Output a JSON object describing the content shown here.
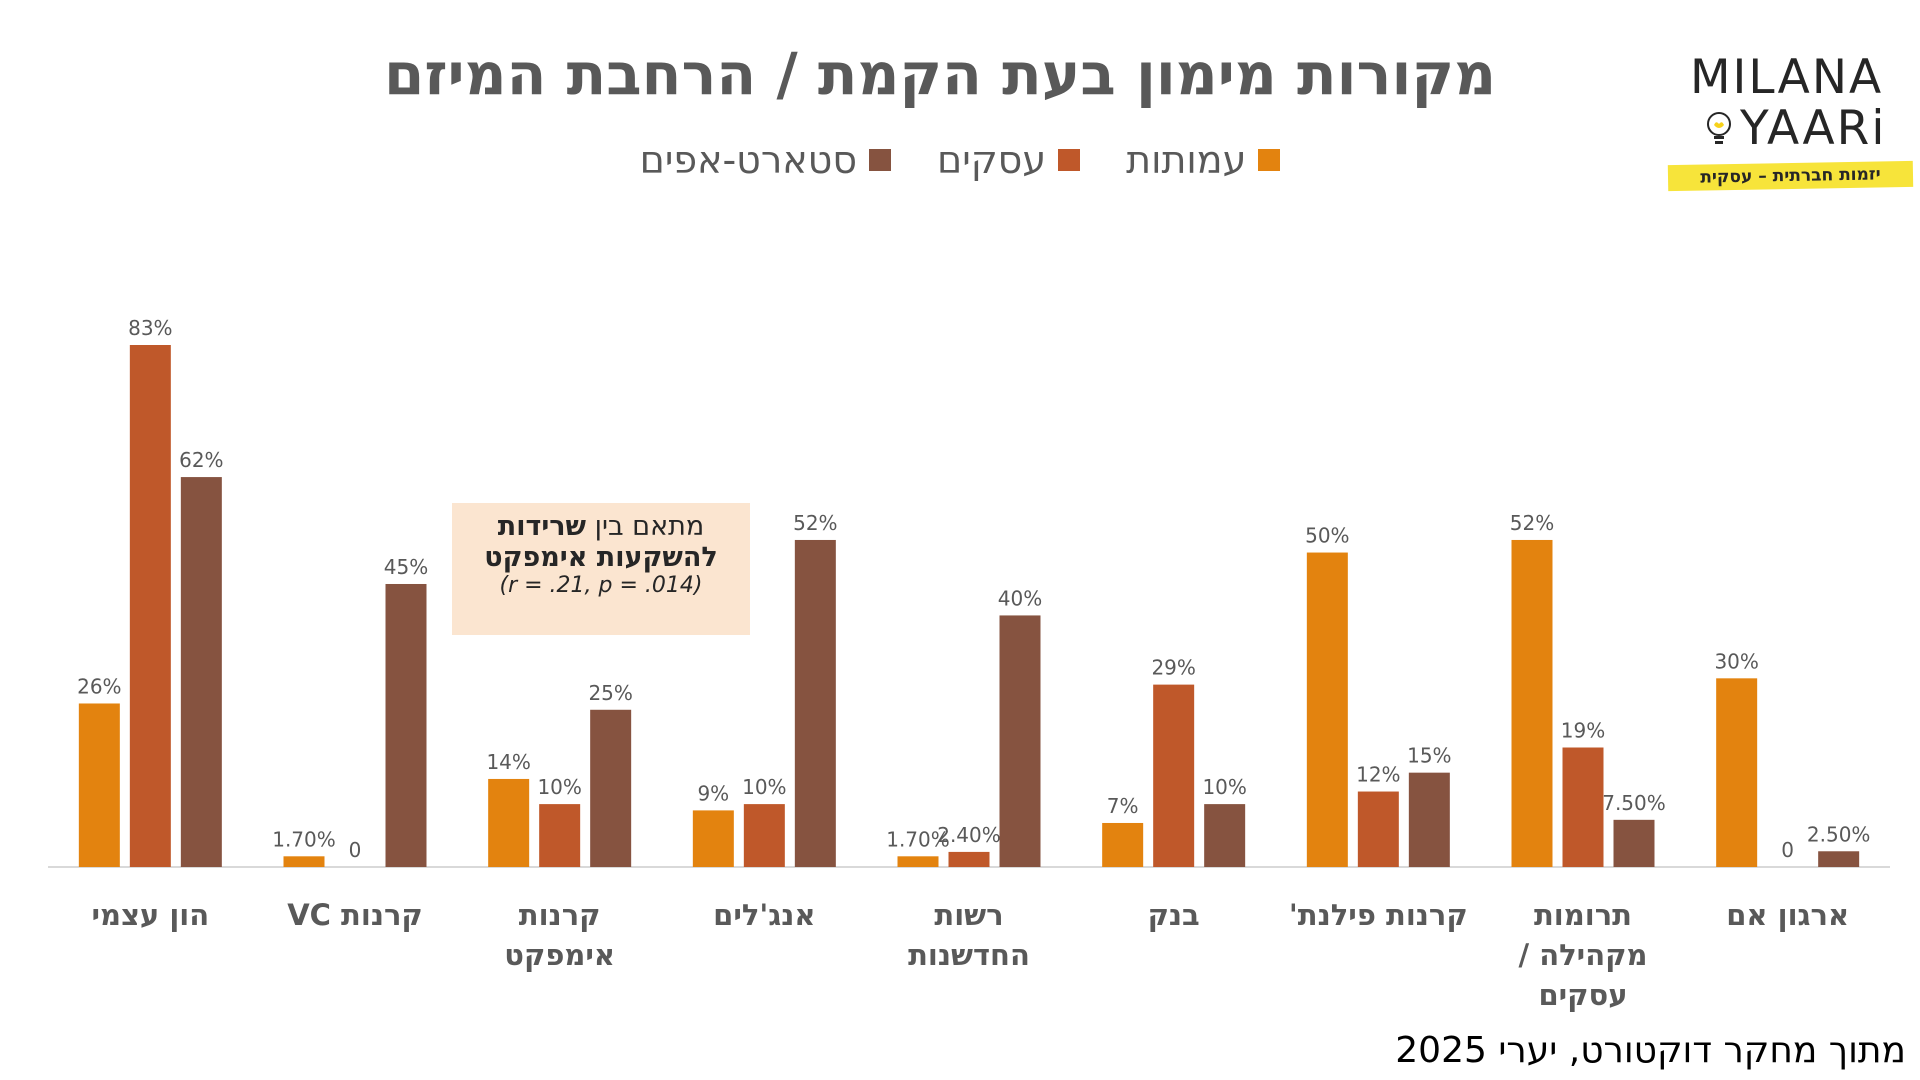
{
  "title": "מקורות מימון בעת הקמת / הרחבת המיזם",
  "legend": [
    {
      "label": "עמותות",
      "color": "#E3830F"
    },
    {
      "label": "עסקים",
      "color": "#BF582A"
    },
    {
      "label": "סטארט-אפים",
      "color": "#865340"
    }
  ],
  "logo": {
    "line1": "MILANA",
    "line2": "YAARi",
    "tagline": "יזמות חברתית – עסקית"
  },
  "annotation": {
    "text_prefix": "מתאם בין ",
    "text_bold": "שרידות",
    "line2": "להשקעות אימפקט",
    "stats": "(r = .21, p = .014)"
  },
  "source": "מתוך מחקר דוקטורט, יערי 2025",
  "chart_data": {
    "type": "bar",
    "title": "מקורות מימון בעת הקמת / הרחבת המיזם",
    "categories": [
      [
        "הון עצמי"
      ],
      [
        "קרנות VC"
      ],
      [
        "קרנות",
        "אימפקט"
      ],
      [
        "אנג'לים"
      ],
      [
        "רשות",
        "החדשנות"
      ],
      [
        "בנק"
      ],
      [
        "קרנות פילנת'"
      ],
      [
        "תרומות",
        "מקהילה /",
        "עסקים"
      ],
      [
        "ארגון אם"
      ]
    ],
    "series": [
      {
        "name": "עמותות",
        "color": "#E3830F",
        "values": [
          26,
          1.7,
          14,
          9,
          1.7,
          7,
          50,
          52,
          30
        ],
        "labels": [
          "26%",
          "1.70%",
          "14%",
          "9%",
          "1.70%",
          "7%",
          "50%",
          "52%",
          "30%"
        ]
      },
      {
        "name": "עסקים",
        "color": "#BF582A",
        "values": [
          83,
          0,
          10,
          10,
          2.4,
          29,
          12,
          19,
          0
        ],
        "labels": [
          "83%",
          "0",
          "10%",
          "10%",
          "2.40%",
          "29%",
          "12%",
          "19%",
          "0"
        ]
      },
      {
        "name": "סטארט-אפים",
        "color": "#865340",
        "values": [
          62,
          45,
          25,
          52,
          40,
          10,
          15,
          7.5,
          2.5
        ],
        "labels": [
          "62%",
          "45%",
          "25%",
          "52%",
          "40%",
          "10%",
          "15%",
          "7.50%",
          "2.50%"
        ]
      }
    ],
    "ylim": [
      0,
      100
    ],
    "xlabel": "",
    "ylabel": "",
    "grid": false,
    "legend_position": "top"
  }
}
